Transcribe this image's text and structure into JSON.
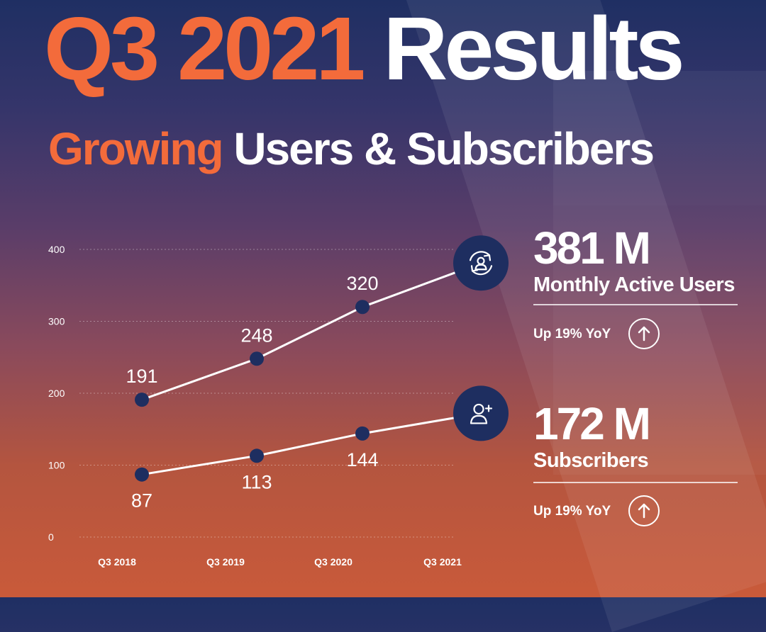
{
  "header": {
    "title_accent": "Q3 2021",
    "title_rest": "Results",
    "subtitle_accent": "Growing",
    "subtitle_rest": "Users & Subscribers"
  },
  "colors": {
    "accent": "#f36b3b",
    "navy": "#1e2e60",
    "line": "#ffffff",
    "grid": "rgba(255,255,255,0.35)"
  },
  "stats": {
    "mau": {
      "value": "381 M",
      "label": "Monthly Active Users",
      "yoy": "Up 19% YoY",
      "icon": "refresh-user-icon"
    },
    "subs": {
      "value": "172 M",
      "label": "Subscribers",
      "yoy": "Up 19% YoY",
      "icon": "add-user-icon"
    }
  },
  "chart_data": {
    "type": "line",
    "title": "Growing Users & Subscribers",
    "xlabel": "",
    "ylabel": "",
    "categories": [
      "Q3  2018",
      "Q3  2019",
      "Q3 2020",
      "Q3 2021"
    ],
    "ylim": [
      0,
      400
    ],
    "yticks": [
      0,
      100,
      200,
      300,
      400
    ],
    "grid": true,
    "series": [
      {
        "name": "Monthly Active Users",
        "values": [
          191,
          248,
          320,
          381
        ],
        "labels": [
          "191",
          "248",
          "320",
          ""
        ],
        "label_position": "above"
      },
      {
        "name": "Subscribers",
        "values": [
          87,
          113,
          144,
          172
        ],
        "labels": [
          "87",
          "113",
          "144",
          ""
        ],
        "label_position": "below"
      }
    ]
  }
}
